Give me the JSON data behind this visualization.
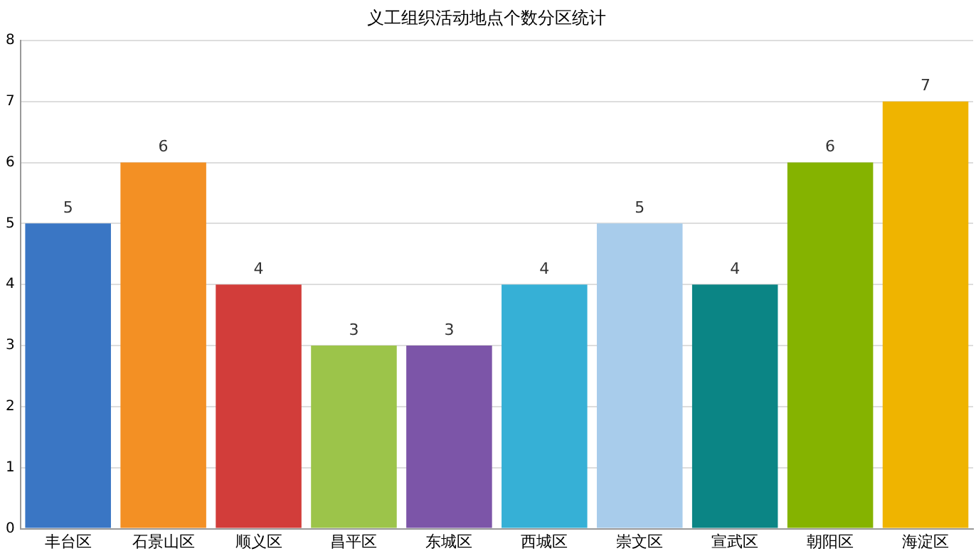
{
  "chart_data": {
    "type": "bar",
    "title": "义工组织活动地点个数分区统计",
    "categories": [
      "丰台区",
      "石景山区",
      "顺义区",
      "昌平区",
      "东城区",
      "西城区",
      "崇文区",
      "宣武区",
      "朝阳区",
      "海淀区"
    ],
    "values": [
      5,
      6,
      4,
      3,
      3,
      4,
      5,
      4,
      6,
      7
    ],
    "colors": [
      "#3a76c4",
      "#f39024",
      "#d23d3a",
      "#9cc44a",
      "#7c55a8",
      "#36b0d6",
      "#a8cceb",
      "#0b8585",
      "#85b300",
      "#efb400"
    ],
    "ylim": [
      0,
      8
    ],
    "yticks": [
      0,
      1,
      2,
      3,
      4,
      5,
      6,
      7,
      8
    ],
    "grid": "y",
    "data_labels": true,
    "legend": false
  }
}
